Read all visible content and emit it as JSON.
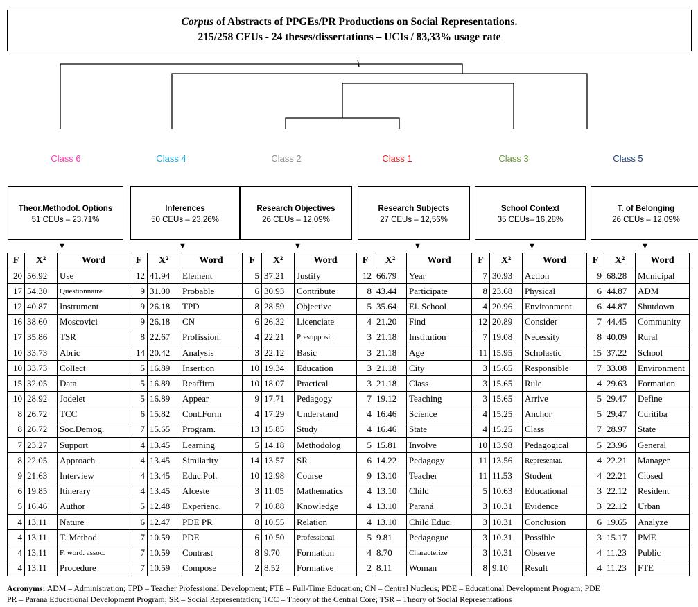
{
  "title": {
    "line1_italic": "Corpus",
    "line1_rest": " of Abstracts of PPGEs/PR Productions on Social Representations.",
    "line2": "215/258 CEUs - 24 theses/dissertations – UCIs / 83,33% usage rate"
  },
  "classes": [
    {
      "label": "Class 6",
      "color": "#ff3ab0",
      "category": "Theor.Methodol. Options",
      "stats": "51 CEUs – 23.71%"
    },
    {
      "label": "Class 4",
      "color": "#1aa7e0",
      "category": "Inferences",
      "stats": "50 CEUs – 23,26%"
    },
    {
      "label": "Class 2",
      "color": "#8c8c8c",
      "category": "Research Objectives",
      "stats": "26 CEUs – 12,09%"
    },
    {
      "label": "Class 1",
      "color": "#e41b1b",
      "category": "Research Subjects",
      "stats": "27 CEUs – 12,56%"
    },
    {
      "label": "Class 3",
      "color": "#6e9a3a",
      "category": "School Context",
      "stats": "35 CEUs– 16,28%"
    },
    {
      "label": "Class 5",
      "color": "#1f3f7a",
      "category": "T. of Belonging",
      "stats": "26 CEUs – 12,09%"
    }
  ],
  "table": {
    "headers": [
      "F",
      "X²",
      "Word"
    ],
    "groups": [
      [
        [
          "20",
          "56.92",
          "Use"
        ],
        [
          "17",
          "54.30",
          "Questionnaire"
        ],
        [
          "12",
          "40.87",
          "Instrument"
        ],
        [
          "16",
          "38.60",
          "Moscovici"
        ],
        [
          "17",
          "35.86",
          "TSR"
        ],
        [
          "10",
          "33.73",
          "Abric"
        ],
        [
          "10",
          "33.73",
          "Collect"
        ],
        [
          "15",
          "32.05",
          "Data"
        ],
        [
          "10",
          "28.92",
          "Jodelet"
        ],
        [
          "8",
          "26.72",
          "TCC"
        ],
        [
          "8",
          "26.72",
          "Soc.Demog."
        ],
        [
          "7",
          "23.27",
          "Support"
        ],
        [
          "8",
          "22.05",
          "Approach"
        ],
        [
          "9",
          "21.63",
          "Interview"
        ],
        [
          "6",
          "19.85",
          "Itinerary"
        ],
        [
          "5",
          "16.46",
          "Author"
        ],
        [
          "4",
          "13.11",
          "Nature"
        ],
        [
          "4",
          "13.11",
          "T. Method."
        ],
        [
          "4",
          "13.11",
          "F. word. assoc."
        ],
        [
          "4",
          "13.11",
          "Procedure"
        ]
      ],
      [
        [
          "12",
          "41.94",
          "Element"
        ],
        [
          "9",
          "31.00",
          "Probable"
        ],
        [
          "9",
          "26.18",
          "TPD"
        ],
        [
          "9",
          "26.18",
          "CN"
        ],
        [
          "8",
          "22.67",
          "Profission."
        ],
        [
          "14",
          "20.42",
          "Analysis"
        ],
        [
          "5",
          "16.89",
          "Insertion"
        ],
        [
          "5",
          "16.89",
          "Reaffirm"
        ],
        [
          "5",
          "16.89",
          "Appear"
        ],
        [
          "6",
          "15.82",
          "Cont.Form"
        ],
        [
          "7",
          "15.65",
          "Program."
        ],
        [
          "4",
          "13.45",
          "Learning"
        ],
        [
          "4",
          "13.45",
          "Similarity"
        ],
        [
          "4",
          "13.45",
          "Educ.Pol."
        ],
        [
          "4",
          "13.45",
          "Alceste"
        ],
        [
          "5",
          "12.48",
          "Experienc."
        ],
        [
          "6",
          "12.47",
          "PDE PR"
        ],
        [
          "7",
          "10.59",
          "PDE"
        ],
        [
          "7",
          "10.59",
          "Contrast"
        ],
        [
          "7",
          "10.59",
          "Compose"
        ]
      ],
      [
        [
          "5",
          "37.21",
          "Justify"
        ],
        [
          "6",
          "30.93",
          "Contribute"
        ],
        [
          "8",
          "28.59",
          "Objective"
        ],
        [
          "6",
          "26.32",
          "Licenciate"
        ],
        [
          "4",
          "22.21",
          "Presupposit."
        ],
        [
          "3",
          "22.12",
          "Basic"
        ],
        [
          "10",
          "19.34",
          "Education"
        ],
        [
          "10",
          "18.07",
          "Practical"
        ],
        [
          "9",
          "17.71",
          "Pedagogy"
        ],
        [
          "4",
          "17.29",
          "Understand"
        ],
        [
          "13",
          "15.85",
          "Study"
        ],
        [
          "5",
          "14.18",
          "Methodolog"
        ],
        [
          "14",
          "13.57",
          "SR"
        ],
        [
          "10",
          "12.98",
          "Course"
        ],
        [
          "3",
          "11.05",
          "Mathematics"
        ],
        [
          "7",
          "10.88",
          "Knowledge"
        ],
        [
          "8",
          "10.55",
          "Relation"
        ],
        [
          "6",
          "10.50",
          "Professional"
        ],
        [
          "8",
          "9.70",
          "Formation"
        ],
        [
          "2",
          "8.52",
          "Formative"
        ]
      ],
      [
        [
          "12",
          "66.79",
          "Year"
        ],
        [
          "8",
          "43.44",
          "Participate"
        ],
        [
          "5",
          "35.64",
          "El. School"
        ],
        [
          "4",
          "21.20",
          "Find"
        ],
        [
          "3",
          "21.18",
          "Institution"
        ],
        [
          "3",
          "21.18",
          "Age"
        ],
        [
          "3",
          "21.18",
          "City"
        ],
        [
          "3",
          "21.18",
          "Class"
        ],
        [
          "7",
          "19.12",
          "Teaching"
        ],
        [
          "4",
          "16.46",
          "Science"
        ],
        [
          "4",
          "16.46",
          "State"
        ],
        [
          "5",
          "15.81",
          "Involve"
        ],
        [
          "6",
          "14.22",
          "Pedagogy"
        ],
        [
          "9",
          "13.10",
          "Teacher"
        ],
        [
          "4",
          "13.10",
          "Child"
        ],
        [
          "4",
          "13.10",
          "Paraná"
        ],
        [
          "4",
          "13.10",
          "Child Educ."
        ],
        [
          "5",
          "9.81",
          "Pedagogue"
        ],
        [
          "4",
          "8.70",
          "Characterize"
        ],
        [
          "2",
          "8.11",
          "Woman"
        ]
      ],
      [
        [
          "7",
          "30.93",
          "Action"
        ],
        [
          "8",
          "23.68",
          "Physical"
        ],
        [
          "4",
          "20.96",
          "Environment"
        ],
        [
          "12",
          "20.89",
          "Consider"
        ],
        [
          "7",
          "19.08",
          "Necessity"
        ],
        [
          "11",
          "15.95",
          "Scholastic"
        ],
        [
          "3",
          "15.65",
          "Responsible"
        ],
        [
          "3",
          "15.65",
          "Rule"
        ],
        [
          "3",
          "15.65",
          "Arrive"
        ],
        [
          "4",
          "15.25",
          "Anchor"
        ],
        [
          "4",
          "15.25",
          "Class"
        ],
        [
          "10",
          "13.98",
          "Pedagogical"
        ],
        [
          "11",
          "13.56",
          "Representat."
        ],
        [
          "11",
          "11.53",
          "Student"
        ],
        [
          "5",
          "10.63",
          "Educational"
        ],
        [
          "3",
          "10.31",
          "Evidence"
        ],
        [
          "3",
          "10.31",
          "Conclusion"
        ],
        [
          "3",
          "10.31",
          "Possible"
        ],
        [
          "3",
          "10.31",
          "Observe"
        ],
        [
          "8",
          "9.10",
          "Result"
        ]
      ],
      [
        [
          "9",
          "68.28",
          "Municipal"
        ],
        [
          "6",
          "44.87",
          "ADM"
        ],
        [
          "6",
          "44.87",
          "Shutdown"
        ],
        [
          "7",
          "44.45",
          "Community"
        ],
        [
          "8",
          "40.09",
          "Rural"
        ],
        [
          "15",
          "37.22",
          "School"
        ],
        [
          "7",
          "33.08",
          "Environment"
        ],
        [
          "4",
          "29.63",
          "Formation"
        ],
        [
          "5",
          "29.47",
          "Define"
        ],
        [
          "5",
          "29.47",
          "Curitiba"
        ],
        [
          "7",
          "28.97",
          "State"
        ],
        [
          "5",
          "23.96",
          "General"
        ],
        [
          "4",
          "22.21",
          "Manager"
        ],
        [
          "4",
          "22.21",
          "Closed"
        ],
        [
          "3",
          "22.12",
          "Resident"
        ],
        [
          "3",
          "22.12",
          "Urban"
        ],
        [
          "6",
          "19.65",
          "Analyze"
        ],
        [
          "3",
          "15.17",
          "PME"
        ],
        [
          "4",
          "11.23",
          "Public"
        ],
        [
          "4",
          "11.23",
          "FTE"
        ]
      ]
    ]
  },
  "acronyms": {
    "label": "Acronyms:",
    "line1": " ADM – Administration; TPD – Teacher Professional Development; FTE – Full-Time Education; CN – Central Nucleus; PDE – Educational Development Program; PDE",
    "line2": "PR – Parana Educational Development Program; SR – Social Representation; TCC – Theory of the Central Core; TSR – Theory of Social Representations"
  }
}
